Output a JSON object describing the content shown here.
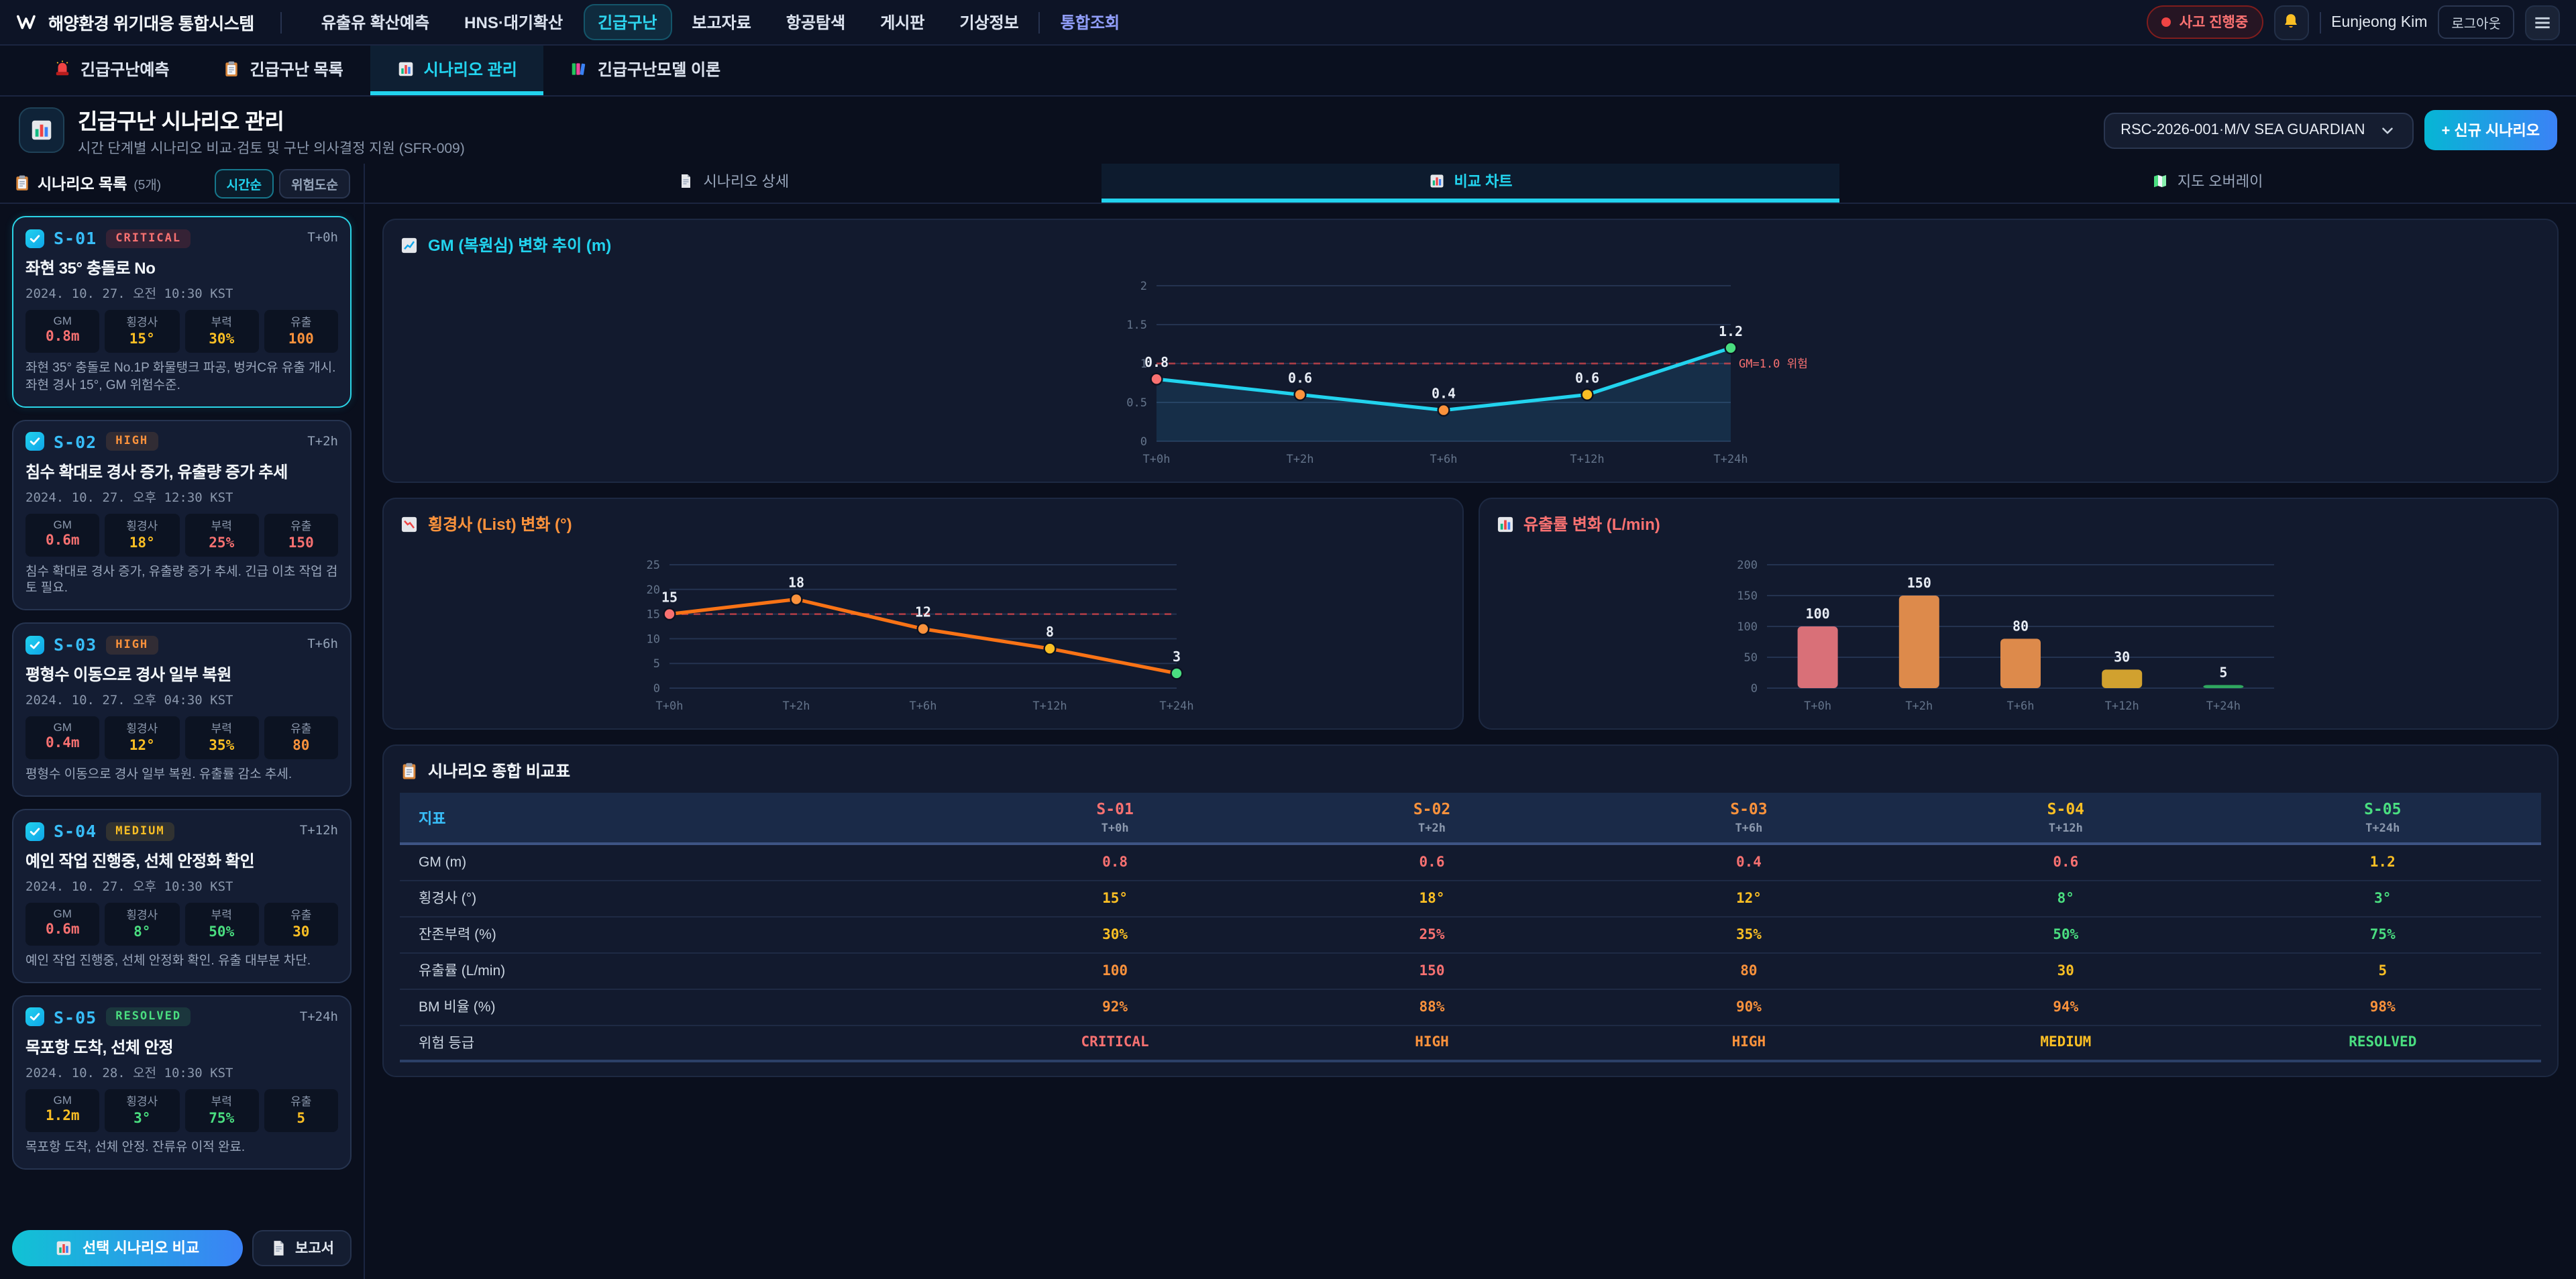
{
  "colors": {
    "red": "#f87171",
    "orange": "#fb923c",
    "yellow": "#fbbf24",
    "green": "#4ade80",
    "cyan": "#38bdf8",
    "gray": "#94a3b8",
    "bar_red": "#d97078",
    "bar_orange": "#dd8a4b",
    "bar_yellow": "#d1a12f",
    "bar_green": "#2fa75f",
    "accent_cyan": "#22d3ee"
  },
  "header": {
    "logo": "Wing",
    "app_title": "해양환경 위기대응 통합시스템",
    "nav": [
      {
        "label": "유출유 확산예측",
        "active": false
      },
      {
        "label": "HNS·대기확산",
        "active": false
      },
      {
        "label": "긴급구난",
        "active": true
      },
      {
        "label": "보고자료",
        "active": false
      },
      {
        "label": "항공탐색",
        "active": false
      },
      {
        "label": "게시판",
        "active": false
      },
      {
        "label": "기상정보",
        "active": false
      },
      {
        "label": "통합조회",
        "active": false,
        "accent": true,
        "divider_before": true
      }
    ],
    "incident_badge": "사고 진행중",
    "user_name": "Eunjeong Kim",
    "logout_label": "로그아웃"
  },
  "subtabs": [
    {
      "icon": "siren",
      "label": "긴급구난예측",
      "active": false
    },
    {
      "icon": "clipboard",
      "label": "긴급구난 목록",
      "active": false
    },
    {
      "icon": "chart",
      "label": "시나리오 관리",
      "active": true
    },
    {
      "icon": "books",
      "label": "긴급구난모델 이론",
      "active": false
    }
  ],
  "page": {
    "title": "긴급구난 시나리오 관리",
    "subtitle": "시간 단계별 시나리오 비교·검토 및 구난 의사결정 지원 (SFR-009)",
    "incident_select": "RSC-2026-001·M/V SEA GUARDIAN",
    "new_scenario_label": "+ 신규 시나리오"
  },
  "sidebar": {
    "title": "시나리오 목록",
    "count": "(5개)",
    "sort_time": "시간순",
    "sort_risk": "위험도순",
    "metric_labels": [
      "GM",
      "횡경사",
      "부력",
      "유출"
    ],
    "scenarios": [
      {
        "id": "S-01",
        "risk": "CRITICAL",
        "risk_color": "red",
        "time": "T+0h",
        "selected": true,
        "title": "좌현 35° 충돌로 No",
        "datetime": "2024. 10. 27. 오전 10:30 KST",
        "metrics": [
          {
            "v": "0.8m",
            "c": "red"
          },
          {
            "v": "15°",
            "c": "yellow"
          },
          {
            "v": "30%",
            "c": "yellow"
          },
          {
            "v": "100",
            "c": "orange"
          }
        ],
        "desc": "좌현 35° 충돌로 No.1P 화물탱크 파공, 벙커C유 유출 개시. 좌현 경사 15°, GM 위험수준."
      },
      {
        "id": "S-02",
        "risk": "HIGH",
        "risk_color": "orange",
        "time": "T+2h",
        "selected": false,
        "title": "침수 확대로 경사 증가, 유출량 증가 추세",
        "datetime": "2024. 10. 27. 오후 12:30 KST",
        "metrics": [
          {
            "v": "0.6m",
            "c": "red"
          },
          {
            "v": "18°",
            "c": "yellow"
          },
          {
            "v": "25%",
            "c": "red"
          },
          {
            "v": "150",
            "c": "red"
          }
        ],
        "desc": "침수 확대로 경사 증가, 유출량 증가 추세. 긴급 이초 작업 검토 필요."
      },
      {
        "id": "S-03",
        "risk": "HIGH",
        "risk_color": "orange",
        "time": "T+6h",
        "selected": false,
        "title": "평형수 이동으로 경사 일부 복원",
        "datetime": "2024. 10. 27. 오후 04:30 KST",
        "metrics": [
          {
            "v": "0.4m",
            "c": "red"
          },
          {
            "v": "12°",
            "c": "yellow"
          },
          {
            "v": "35%",
            "c": "yellow"
          },
          {
            "v": "80",
            "c": "orange"
          }
        ],
        "desc": "평형수 이동으로 경사 일부 복원. 유출률 감소 추세."
      },
      {
        "id": "S-04",
        "risk": "MEDIUM",
        "risk_color": "yellow",
        "time": "T+12h",
        "selected": false,
        "title": "예인 작업 진행중, 선체 안정화 확인",
        "datetime": "2024. 10. 27. 오후 10:30 KST",
        "metrics": [
          {
            "v": "0.6m",
            "c": "red"
          },
          {
            "v": "8°",
            "c": "green"
          },
          {
            "v": "50%",
            "c": "green"
          },
          {
            "v": "30",
            "c": "yellow"
          }
        ],
        "desc": "예인 작업 진행중, 선체 안정화 확인. 유출 대부분 차단."
      },
      {
        "id": "S-05",
        "risk": "RESOLVED",
        "risk_color": "green",
        "time": "T+24h",
        "selected": false,
        "title": "목포항 도착, 선체 안정",
        "datetime": "2024. 10. 28. 오전 10:30 KST",
        "metrics": [
          {
            "v": "1.2m",
            "c": "yellow"
          },
          {
            "v": "3°",
            "c": "green"
          },
          {
            "v": "75%",
            "c": "green"
          },
          {
            "v": "5",
            "c": "yellow"
          }
        ],
        "desc": "목포항 도착, 선체 안정. 잔류유 이적 완료."
      }
    ]
  },
  "content_tabs": [
    {
      "icon": "doc",
      "label": "시나리오 상세",
      "active": false
    },
    {
      "icon": "chart",
      "label": "비교 차트",
      "active": true
    },
    {
      "icon": "map",
      "label": "지도 오버레이",
      "active": false
    }
  ],
  "chart_data": [
    {
      "type": "line",
      "name": "gm-trend",
      "title": "GM (복원심) 변화 추이 (m)",
      "title_color": "cyan",
      "icon": "chartup",
      "x": [
        "T+0h",
        "T+2h",
        "T+6h",
        "T+12h",
        "T+24h"
      ],
      "values": [
        0.8,
        0.6,
        0.4,
        0.6,
        1.2
      ],
      "ylim": [
        0,
        2
      ],
      "yticks": [
        0,
        0.5,
        1,
        1.5,
        2
      ],
      "threshold": {
        "value": 1.0,
        "label": "GM=1.0 위험"
      },
      "line_color": "#22d3ee",
      "area": true,
      "point_colors": [
        "red",
        "orange",
        "orange",
        "yellow",
        "green"
      ]
    },
    {
      "type": "line",
      "name": "list-trend",
      "title": "횡경사 (List) 변화 (°)",
      "title_color": "orange",
      "icon": "chartdown",
      "x": [
        "T+0h",
        "T+2h",
        "T+6h",
        "T+12h",
        "T+24h"
      ],
      "values": [
        15,
        18,
        12,
        8,
        3
      ],
      "ylim": [
        0,
        25
      ],
      "yticks": [
        0,
        5,
        10,
        15,
        20,
        25
      ],
      "threshold": {
        "value": 15,
        "label": ""
      },
      "line_color": "#f97316",
      "area": false,
      "point_colors": [
        "red",
        "orange",
        "orange",
        "yellow",
        "green"
      ]
    },
    {
      "type": "bar",
      "name": "spill-rate",
      "title": "유출률 변화 (L/min)",
      "title_color": "red",
      "icon": "chart",
      "x": [
        "T+0h",
        "T+2h",
        "T+6h",
        "T+12h",
        "T+24h"
      ],
      "values": [
        100,
        150,
        80,
        30,
        5
      ],
      "ylim": [
        0,
        200
      ],
      "yticks": [
        0,
        50,
        100,
        150,
        200
      ],
      "bar_colors": [
        "bar_red",
        "bar_orange",
        "bar_orange",
        "bar_yellow",
        "bar_green"
      ]
    }
  ],
  "table": {
    "title": "시나리오 종합 비교표",
    "col_header": "지표",
    "columns": [
      {
        "id": "S-01",
        "time": "T+0h",
        "color": "red"
      },
      {
        "id": "S-02",
        "time": "T+2h",
        "color": "orange"
      },
      {
        "id": "S-03",
        "time": "T+6h",
        "color": "orange"
      },
      {
        "id": "S-04",
        "time": "T+12h",
        "color": "yellow"
      },
      {
        "id": "S-05",
        "time": "T+24h",
        "color": "green"
      }
    ],
    "rows": [
      {
        "label": "GM (m)",
        "cells": [
          {
            "t": "0.8",
            "c": "red"
          },
          {
            "t": "0.6",
            "c": "red"
          },
          {
            "t": "0.4",
            "c": "red"
          },
          {
            "t": "0.6",
            "c": "red"
          },
          {
            "t": "1.2",
            "c": "yellow"
          }
        ]
      },
      {
        "label": "횡경사 (°)",
        "cells": [
          {
            "t": "15°",
            "c": "yellow"
          },
          {
            "t": "18°",
            "c": "yellow"
          },
          {
            "t": "12°",
            "c": "yellow"
          },
          {
            "t": "8°",
            "c": "green"
          },
          {
            "t": "3°",
            "c": "green"
          }
        ]
      },
      {
        "label": "잔존부력 (%)",
        "cells": [
          {
            "t": "30%",
            "c": "yellow"
          },
          {
            "t": "25%",
            "c": "red"
          },
          {
            "t": "35%",
            "c": "yellow"
          },
          {
            "t": "50%",
            "c": "green"
          },
          {
            "t": "75%",
            "c": "green"
          }
        ]
      },
      {
        "label": "유출률 (L/min)",
        "cells": [
          {
            "t": "100",
            "c": "orange"
          },
          {
            "t": "150",
            "c": "red"
          },
          {
            "t": "80",
            "c": "orange"
          },
          {
            "t": "30",
            "c": "yellow"
          },
          {
            "t": "5",
            "c": "yellow"
          }
        ]
      },
      {
        "label": "BM 비율 (%)",
        "cells": [
          {
            "t": "92%",
            "c": "orange"
          },
          {
            "t": "88%",
            "c": "orange"
          },
          {
            "t": "90%",
            "c": "orange"
          },
          {
            "t": "94%",
            "c": "orange"
          },
          {
            "t": "98%",
            "c": "orange"
          }
        ]
      },
      {
        "label": "위험 등급",
        "cells": [
          {
            "t": "CRITICAL",
            "c": "red"
          },
          {
            "t": "HIGH",
            "c": "orange"
          },
          {
            "t": "HIGH",
            "c": "orange"
          },
          {
            "t": "MEDIUM",
            "c": "yellow"
          },
          {
            "t": "RESOLVED",
            "c": "green"
          }
        ]
      }
    ]
  },
  "footer": {
    "compare_label": "선택 시나리오 비교",
    "report_label": "보고서"
  }
}
